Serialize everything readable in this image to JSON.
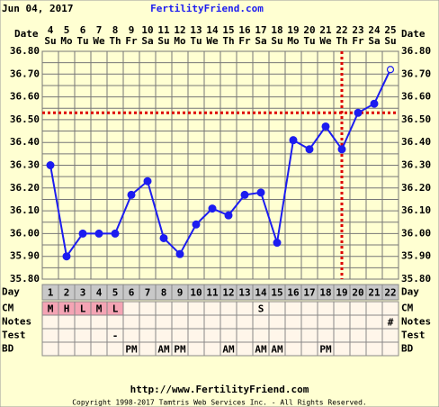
{
  "chart_data": {
    "type": "line",
    "date_label": "Jun 04, 2017",
    "site": "FertilityFriend.com",
    "row_labels": {
      "date": "Date",
      "day": "Day",
      "cm": "CM",
      "notes": "Notes",
      "test": "Test",
      "bd": "BD"
    },
    "dates": [
      4,
      5,
      6,
      7,
      8,
      9,
      10,
      11,
      12,
      13,
      14,
      15,
      16,
      17,
      18,
      19,
      20,
      21,
      22,
      23,
      24,
      25
    ],
    "weekdays": [
      "Su",
      "Mo",
      "Tu",
      "We",
      "Th",
      "Fr",
      "Sa",
      "Su",
      "Mo",
      "Tu",
      "We",
      "Th",
      "Fr",
      "Sa",
      "Su",
      "Mo",
      "Tu",
      "We",
      "Th",
      "Fr",
      "Sa",
      "Su"
    ],
    "days": [
      1,
      2,
      3,
      4,
      5,
      6,
      7,
      8,
      9,
      10,
      11,
      12,
      13,
      14,
      15,
      16,
      17,
      18,
      19,
      20,
      21,
      22
    ],
    "values": [
      36.3,
      35.9,
      36.0,
      36.0,
      36.0,
      36.17,
      36.23,
      35.98,
      35.91,
      36.04,
      36.11,
      36.08,
      36.17,
      36.18,
      35.96,
      36.41,
      36.37,
      36.47,
      36.37,
      36.53,
      36.57,
      36.72
    ],
    "color": "#1c1cf0",
    "open_last_point": true,
    "ylim": [
      35.8,
      36.8
    ],
    "yticks": [
      {
        "value": 35.8,
        "label": "35.80"
      },
      {
        "value": 35.9,
        "label": "35.90"
      },
      {
        "value": 36.0,
        "label": "36.00"
      },
      {
        "value": 36.1,
        "label": "36.10"
      },
      {
        "value": 36.2,
        "label": "36.20"
      },
      {
        "value": 36.3,
        "label": "36.30"
      },
      {
        "value": 36.4,
        "label": "36.40"
      },
      {
        "value": 36.5,
        "label": "36.50"
      },
      {
        "value": 36.6,
        "label": "36.60"
      },
      {
        "value": 36.7,
        "label": "36.70"
      },
      {
        "value": 36.8,
        "label": "36.80"
      }
    ],
    "grid": true,
    "coverline": 36.53,
    "ovulation_day": 19,
    "marker_line_color": "#dd0000",
    "cm": [
      "M",
      "H",
      "L",
      "M",
      "L",
      null,
      null,
      null,
      null,
      null,
      null,
      null,
      null,
      "S",
      null,
      null,
      null,
      null,
      null,
      null,
      null,
      null
    ],
    "notes": [
      null,
      null,
      null,
      null,
      null,
      null,
      null,
      null,
      null,
      null,
      null,
      null,
      null,
      null,
      null,
      null,
      null,
      null,
      null,
      null,
      null,
      "#"
    ],
    "test": [
      null,
      null,
      null,
      null,
      "-",
      null,
      null,
      null,
      null,
      null,
      null,
      null,
      null,
      null,
      null,
      null,
      null,
      null,
      null,
      null,
      null,
      null
    ],
    "bd": [
      null,
      null,
      null,
      null,
      null,
      "PM",
      null,
      "AM",
      "PM",
      null,
      null,
      "AM",
      null,
      "AM",
      "AM",
      null,
      null,
      "PM",
      null,
      null,
      null,
      null
    ],
    "footer": {
      "url": "http://www.FertilityFriend.com",
      "copyright": "Copyright 1998-2017 Tamtris Web Services Inc. - All Rights Reserved."
    }
  }
}
